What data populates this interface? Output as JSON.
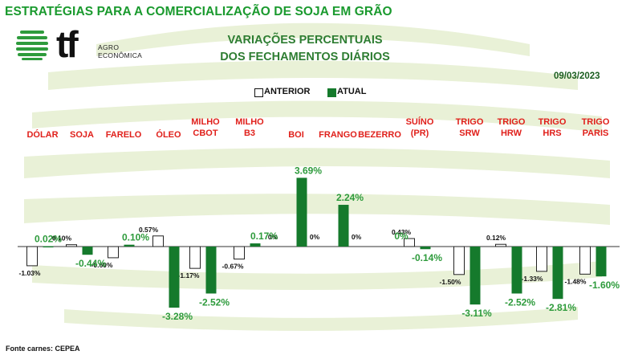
{
  "header": {
    "title": "ESTRATÉGIAS PARA A COMERCIALIZAÇÃO DE SOJA EM GRÃO"
  },
  "logo": {
    "mark": "tf",
    "line1": "AGRO",
    "line2": "ECONÔMICA",
    "icon": "leaf-globe-icon"
  },
  "colors": {
    "title_green": "#1a9a2e",
    "bar_current": "#157a2c",
    "bar_previous": "#ffffff",
    "category_label": "#e0201b",
    "current_label": "#2e9b3c",
    "previous_label": "#111111",
    "background_stripes": "#e7f0d4"
  },
  "chart_data": {
    "type": "bar",
    "title": "VARIAÇÕES PERCENTUAIS",
    "subtitle": "DOS FECHAMENTOS DIÁRIOS",
    "date": "09/03/2023",
    "source": "Fonte carnes: CEPEA",
    "legend_position": "top-center",
    "grid": false,
    "categories": [
      [
        "DÓLAR"
      ],
      [
        "SOJA"
      ],
      [
        "FARELO"
      ],
      [
        "ÓLEO"
      ],
      [
        "MILHO",
        "CBOT"
      ],
      [
        "MILHO",
        "B3"
      ],
      [
        "BOI"
      ],
      [
        "FRANGO"
      ],
      [
        "BEZERRO"
      ],
      [
        "SUÍNO",
        "(PR)"
      ],
      [
        "TRIGO",
        "SRW"
      ],
      [
        "TRIGO",
        "HRW"
      ],
      [
        "TRIGO",
        "HRS"
      ],
      [
        "TRIGO",
        "PARIS"
      ]
    ],
    "series": [
      {
        "name": "ANTERIOR",
        "values": [
          -1.03,
          0.1,
          -0.6,
          0.57,
          -1.17,
          -0.67,
          0,
          0,
          0,
          0.43,
          -1.5,
          0.12,
          -1.33,
          -1.48
        ],
        "labels": [
          "-1.03%",
          "0.10%",
          "-0.60%",
          "0.57%",
          "-1.17%",
          "-0.67%",
          "0%",
          "0%",
          "0%",
          "0.43%",
          "-1.50%",
          "0.12%",
          "-1.33%",
          "-1.48%"
        ]
      },
      {
        "name": "ATUAL",
        "values": [
          0.02,
          -0.44,
          0.1,
          -3.28,
          -2.52,
          0.17,
          3.69,
          2.24,
          0,
          -0.14,
          -3.11,
          -2.52,
          -2.81,
          -1.6
        ],
        "labels": [
          "0.02%",
          "-0.44%",
          "0.10%",
          "-3.28%",
          "-2.52%",
          "0.17%",
          "3.69%",
          "2.24%",
          "0%",
          "-0.14%",
          "-3.11%",
          "-2.52%",
          "-2.81%",
          "-1.60%"
        ]
      }
    ]
  }
}
